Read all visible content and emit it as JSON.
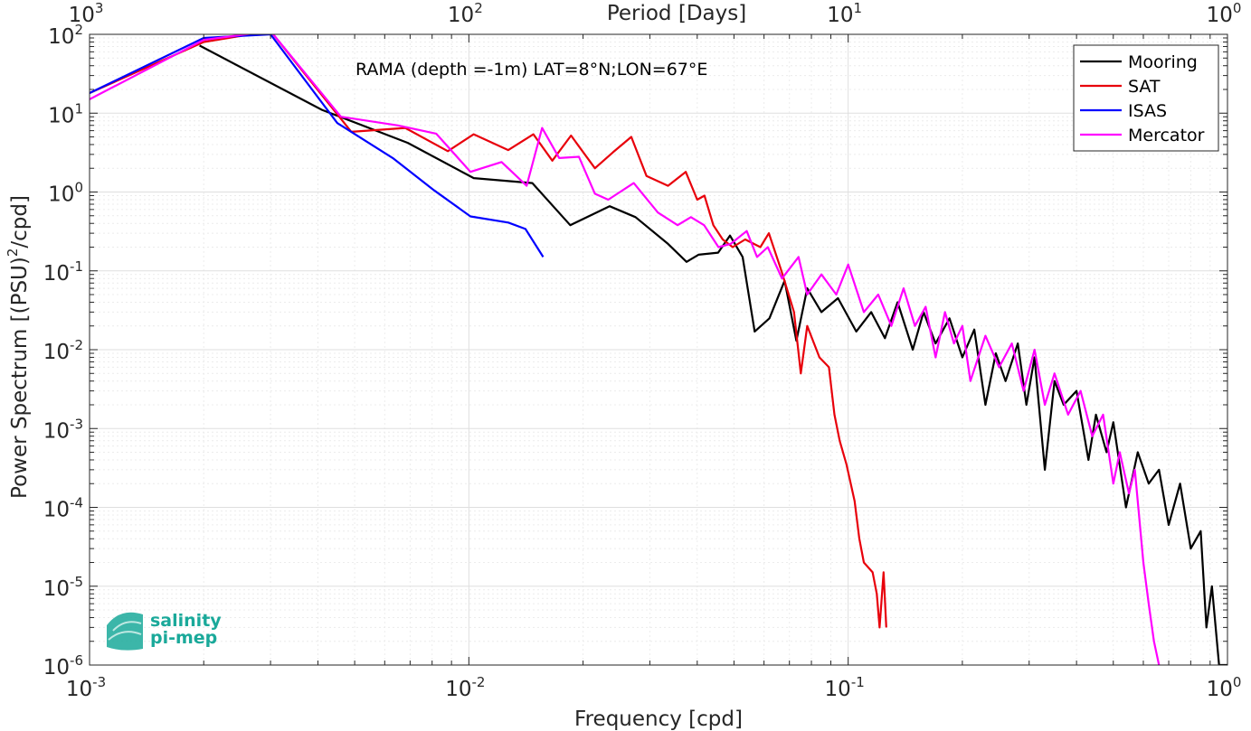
{
  "chart_data": {
    "type": "line",
    "title": "",
    "annotation": "RAMA (depth =-1m) LAT=8°N;LON=67°E",
    "xlabel": "Frequency [cpd]",
    "ylabel_main": "Power Spectrum [(PSU)",
    "ylabel_sup": "2",
    "ylabel_tail": "/cpd]",
    "top_xlabel": "Period [Days]",
    "xscale": "log",
    "yscale": "log",
    "xlim": [
      0.001,
      1
    ],
    "ylim": [
      1e-06,
      100
    ],
    "grid": true,
    "legend_position": "top-right",
    "x_ticks": [
      {
        "value": 0.001,
        "base": "10",
        "exp": "-3"
      },
      {
        "value": 0.01,
        "base": "10",
        "exp": "-2"
      },
      {
        "value": 0.1,
        "base": "10",
        "exp": "-1"
      },
      {
        "value": 1,
        "base": "10",
        "exp": "0"
      }
    ],
    "y_ticks": [
      {
        "value": 1e-06,
        "base": "10",
        "exp": "-6"
      },
      {
        "value": 1e-05,
        "base": "10",
        "exp": "-5"
      },
      {
        "value": 0.0001,
        "base": "10",
        "exp": "-4"
      },
      {
        "value": 0.001,
        "base": "10",
        "exp": "-3"
      },
      {
        "value": 0.01,
        "base": "10",
        "exp": "-2"
      },
      {
        "value": 0.1,
        "base": "10",
        "exp": "-1"
      },
      {
        "value": 1,
        "base": "10",
        "exp": "0"
      },
      {
        "value": 10,
        "base": "10",
        "exp": "1"
      },
      {
        "value": 100,
        "base": "10",
        "exp": "2"
      }
    ],
    "top_ticks": [
      {
        "freq": 0.001,
        "base": "10",
        "exp": "3"
      },
      {
        "freq": 0.01,
        "base": "10",
        "exp": "2"
      },
      {
        "freq": 0.1,
        "base": "10",
        "exp": "1"
      },
      {
        "freq": 1,
        "base": "10",
        "exp": "0"
      }
    ],
    "series": [
      {
        "name": "Mooring",
        "color": "#000000",
        "points": [
          [
            0.00195,
            72
          ],
          [
            0.0041,
            11
          ],
          [
            0.0069,
            4.2
          ],
          [
            0.0103,
            1.5
          ],
          [
            0.0147,
            1.3
          ],
          [
            0.0185,
            0.38
          ],
          [
            0.0235,
            0.66
          ],
          [
            0.0275,
            0.48
          ],
          [
            0.0335,
            0.22
          ],
          [
            0.0375,
            0.13
          ],
          [
            0.0403,
            0.16
          ],
          [
            0.0454,
            0.17
          ],
          [
            0.0488,
            0.28
          ],
          [
            0.0527,
            0.15
          ],
          [
            0.0567,
            0.017
          ],
          [
            0.062,
            0.025
          ],
          [
            0.068,
            0.075
          ],
          [
            0.073,
            0.013
          ],
          [
            0.078,
            0.06
          ],
          [
            0.085,
            0.03
          ],
          [
            0.094,
            0.045
          ],
          [
            0.105,
            0.017
          ],
          [
            0.115,
            0.03
          ],
          [
            0.125,
            0.014
          ],
          [
            0.135,
            0.04
          ],
          [
            0.148,
            0.01
          ],
          [
            0.158,
            0.03
          ],
          [
            0.17,
            0.012
          ],
          [
            0.185,
            0.025
          ],
          [
            0.2,
            0.008
          ],
          [
            0.215,
            0.018
          ],
          [
            0.23,
            0.002
          ],
          [
            0.245,
            0.009
          ],
          [
            0.26,
            0.004
          ],
          [
            0.28,
            0.012
          ],
          [
            0.295,
            0.002
          ],
          [
            0.31,
            0.008
          ],
          [
            0.33,
            0.0003
          ],
          [
            0.35,
            0.004
          ],
          [
            0.37,
            0.002
          ],
          [
            0.4,
            0.003
          ],
          [
            0.43,
            0.0004
          ],
          [
            0.45,
            0.0015
          ],
          [
            0.48,
            0.0005
          ],
          [
            0.5,
            0.0012
          ],
          [
            0.54,
            0.0001
          ],
          [
            0.58,
            0.0005
          ],
          [
            0.62,
            0.0002
          ],
          [
            0.66,
            0.0003
          ],
          [
            0.7,
            6e-05
          ],
          [
            0.75,
            0.0002
          ],
          [
            0.8,
            3e-05
          ],
          [
            0.85,
            5e-05
          ],
          [
            0.88,
            3e-06
          ],
          [
            0.91,
            1e-05
          ],
          [
            0.95,
            1e-06
          ],
          [
            1.0,
            1e-06
          ]
        ]
      },
      {
        "name": "SAT",
        "color": "#e8000b",
        "points": [
          [
            0.001,
            18
          ],
          [
            0.002,
            80
          ],
          [
            0.003,
            110
          ],
          [
            0.0049,
            5.8
          ],
          [
            0.0068,
            6.5
          ],
          [
            0.0088,
            3.3
          ],
          [
            0.0103,
            5.4
          ],
          [
            0.0127,
            3.4
          ],
          [
            0.0148,
            5.4
          ],
          [
            0.0166,
            2.5
          ],
          [
            0.0186,
            5.2
          ],
          [
            0.0215,
            2.0
          ],
          [
            0.024,
            3.2
          ],
          [
            0.0268,
            5.0
          ],
          [
            0.0294,
            1.6
          ],
          [
            0.0335,
            1.2
          ],
          [
            0.0373,
            1.8
          ],
          [
            0.04,
            0.8
          ],
          [
            0.0418,
            0.9
          ],
          [
            0.0441,
            0.38
          ],
          [
            0.0467,
            0.25
          ],
          [
            0.0496,
            0.2
          ],
          [
            0.0535,
            0.25
          ],
          [
            0.0587,
            0.2
          ],
          [
            0.0618,
            0.3
          ],
          [
            0.0667,
            0.1
          ],
          [
            0.072,
            0.03
          ],
          [
            0.075,
            0.005
          ],
          [
            0.078,
            0.02
          ],
          [
            0.084,
            0.008
          ],
          [
            0.089,
            0.006
          ],
          [
            0.092,
            0.0015
          ],
          [
            0.095,
            0.0007
          ],
          [
            0.099,
            0.00035
          ],
          [
            0.104,
            0.00012
          ],
          [
            0.107,
            4e-05
          ],
          [
            0.11,
            2e-05
          ],
          [
            0.116,
            1.5e-05
          ],
          [
            0.119,
            8e-06
          ],
          [
            0.121,
            3e-06
          ],
          [
            0.124,
            1.5e-05
          ],
          [
            0.126,
            3e-06
          ]
        ]
      },
      {
        "name": "ISAS",
        "color": "#0000ff",
        "points": [
          [
            0.001,
            18
          ],
          [
            0.002,
            90
          ],
          [
            0.003,
            100
          ],
          [
            0.0045,
            7.5
          ],
          [
            0.0063,
            2.7
          ],
          [
            0.0081,
            1.05
          ],
          [
            0.0101,
            0.49
          ],
          [
            0.0127,
            0.41
          ],
          [
            0.0141,
            0.34
          ],
          [
            0.0157,
            0.15
          ]
        ]
      },
      {
        "name": "Mercator",
        "color": "#ff00ff",
        "points": [
          [
            0.001,
            15
          ],
          [
            0.002,
            85
          ],
          [
            0.003,
            110
          ],
          [
            0.0046,
            9.0
          ],
          [
            0.0065,
            7.0
          ],
          [
            0.0082,
            5.5
          ],
          [
            0.0101,
            1.8
          ],
          [
            0.0122,
            2.4
          ],
          [
            0.0142,
            1.2
          ],
          [
            0.0156,
            6.5
          ],
          [
            0.0173,
            2.7
          ],
          [
            0.0195,
            2.8
          ],
          [
            0.0215,
            0.95
          ],
          [
            0.0233,
            0.8
          ],
          [
            0.0272,
            1.3
          ],
          [
            0.0315,
            0.55
          ],
          [
            0.0355,
            0.38
          ],
          [
            0.0385,
            0.48
          ],
          [
            0.0417,
            0.38
          ],
          [
            0.0455,
            0.2
          ],
          [
            0.049,
            0.22
          ],
          [
            0.054,
            0.32
          ],
          [
            0.0575,
            0.15
          ],
          [
            0.0614,
            0.2
          ],
          [
            0.0669,
            0.08
          ],
          [
            0.074,
            0.15
          ],
          [
            0.078,
            0.05
          ],
          [
            0.085,
            0.09
          ],
          [
            0.093,
            0.05
          ],
          [
            0.1,
            0.12
          ],
          [
            0.11,
            0.03
          ],
          [
            0.12,
            0.05
          ],
          [
            0.13,
            0.02
          ],
          [
            0.14,
            0.06
          ],
          [
            0.15,
            0.02
          ],
          [
            0.16,
            0.035
          ],
          [
            0.17,
            0.008
          ],
          [
            0.18,
            0.03
          ],
          [
            0.19,
            0.012
          ],
          [
            0.2,
            0.02
          ],
          [
            0.21,
            0.004
          ],
          [
            0.23,
            0.015
          ],
          [
            0.25,
            0.006
          ],
          [
            0.27,
            0.012
          ],
          [
            0.29,
            0.003
          ],
          [
            0.31,
            0.01
          ],
          [
            0.33,
            0.002
          ],
          [
            0.35,
            0.005
          ],
          [
            0.38,
            0.0015
          ],
          [
            0.41,
            0.003
          ],
          [
            0.44,
            0.0008
          ],
          [
            0.47,
            0.0015
          ],
          [
            0.5,
            0.0002
          ],
          [
            0.52,
            0.0005
          ],
          [
            0.55,
            0.00015
          ],
          [
            0.57,
            0.0003
          ],
          [
            0.6,
            2e-05
          ],
          [
            0.62,
            6e-06
          ],
          [
            0.64,
            2e-06
          ],
          [
            0.66,
            1e-06
          ]
        ]
      }
    ]
  },
  "logo": {
    "line1": "salinity",
    "line2": "pi-mep"
  }
}
